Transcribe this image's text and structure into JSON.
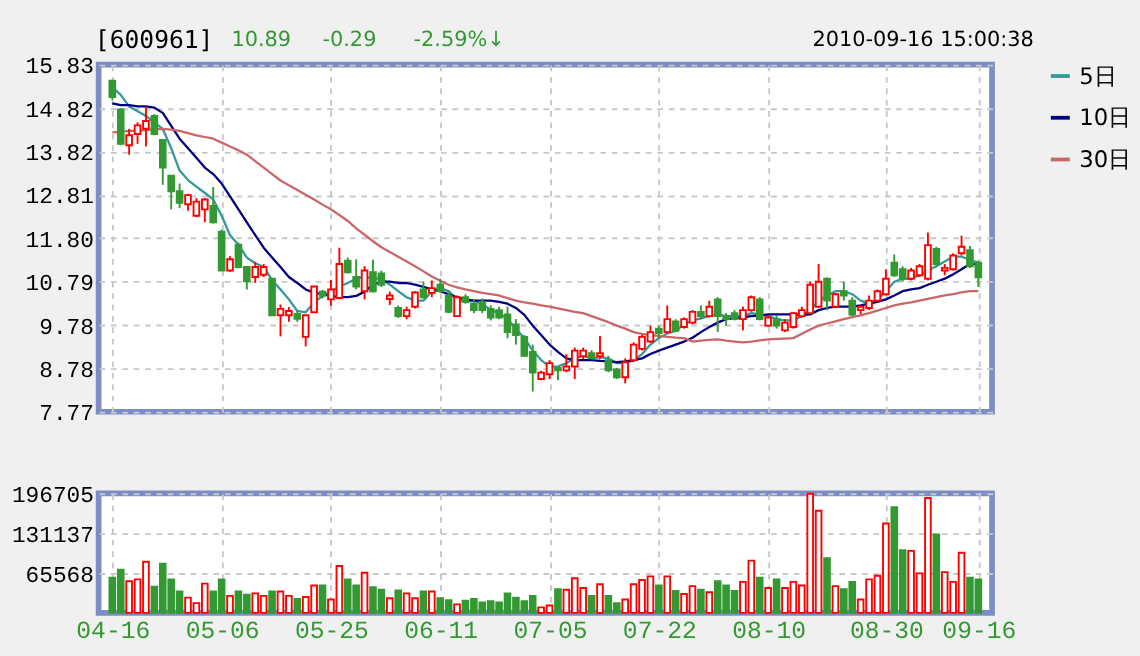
{
  "chart_data": [
    {
      "type": "candlestick",
      "title": "[600961]",
      "annotations": [
        "10.89",
        "-0.29",
        "-2.59%↓",
        "2010-09-16 15:00:38"
      ],
      "categories": [
        "04-16",
        null,
        null,
        null,
        null,
        null,
        null,
        null,
        null,
        null,
        null,
        null,
        null,
        "05-06",
        null,
        null,
        null,
        null,
        null,
        null,
        null,
        null,
        null,
        null,
        null,
        null,
        "05-25",
        null,
        null,
        null,
        null,
        null,
        null,
        null,
        null,
        null,
        null,
        null,
        null,
        "06-11",
        null,
        null,
        null,
        null,
        null,
        null,
        null,
        null,
        null,
        null,
        null,
        null,
        "07-05",
        null,
        null,
        null,
        null,
        null,
        null,
        null,
        null,
        null,
        null,
        null,
        null,
        "07-22",
        null,
        null,
        null,
        null,
        null,
        null,
        null,
        null,
        null,
        null,
        null,
        null,
        "08-10",
        null,
        null,
        null,
        null,
        null,
        null,
        null,
        null,
        null,
        null,
        null,
        null,
        null,
        "08-30",
        null,
        null,
        null,
        null,
        null,
        null,
        null,
        null,
        null,
        null,
        "09-16"
      ],
      "ohlc": [
        [
          15.46,
          15.46,
          15.01,
          15.08
        ],
        [
          14.79,
          14.82,
          13.96,
          13.99
        ],
        [
          13.96,
          14.34,
          13.74,
          14.19
        ],
        [
          14.22,
          14.49,
          13.99,
          14.42
        ],
        [
          14.34,
          14.86,
          13.93,
          14.52
        ],
        [
          14.64,
          14.68,
          14.19,
          14.22
        ],
        [
          14.08,
          14.08,
          13.04,
          13.44
        ],
        [
          13.25,
          13.25,
          12.47,
          12.89
        ],
        [
          12.89,
          13.07,
          12.5,
          12.62
        ],
        [
          12.59,
          12.83,
          12.44,
          12.8
        ],
        [
          12.32,
          12.73,
          12.29,
          12.65
        ],
        [
          12.47,
          12.73,
          12.17,
          12.7
        ],
        [
          12.55,
          12.99,
          12.14,
          12.17
        ],
        [
          11.95,
          12.0,
          11.05,
          11.05
        ],
        [
          11.05,
          11.38,
          11.02,
          11.31
        ],
        [
          11.65,
          11.7,
          11.1,
          11.13
        ],
        [
          11.13,
          11.13,
          10.61,
          10.8
        ],
        [
          10.9,
          11.25,
          10.76,
          11.13
        ],
        [
          10.95,
          11.2,
          10.9,
          11.13
        ],
        [
          10.86,
          10.86,
          10.01,
          10.01
        ],
        [
          10.01,
          10.26,
          9.52,
          10.16
        ],
        [
          10.01,
          10.2,
          9.86,
          10.11
        ],
        [
          10.04,
          10.11,
          9.86,
          9.93
        ],
        [
          9.51,
          10.01,
          9.29,
          10.01
        ],
        [
          10.08,
          10.68,
          10.08,
          10.68
        ],
        [
          10.56,
          10.6,
          10.4,
          10.46
        ],
        [
          10.38,
          10.83,
          10.23,
          10.61
        ],
        [
          10.41,
          11.58,
          10.38,
          11.2
        ],
        [
          11.28,
          11.35,
          10.98,
          11.01
        ],
        [
          10.9,
          11.31,
          10.61,
          10.68
        ],
        [
          10.57,
          11.15,
          10.38,
          11.05
        ],
        [
          11.01,
          11.3,
          10.54,
          10.57
        ],
        [
          10.98,
          11.05,
          10.67,
          10.72
        ],
        [
          10.39,
          10.56,
          10.25,
          10.47
        ],
        [
          10.18,
          10.24,
          9.95,
          9.99
        ],
        [
          9.99,
          10.21,
          9.92,
          10.13
        ],
        [
          10.21,
          10.57,
          10.17,
          10.54
        ],
        [
          10.61,
          10.79,
          10.4,
          10.43
        ],
        [
          10.53,
          10.82,
          10.43,
          10.64
        ],
        [
          10.72,
          10.86,
          10.54,
          10.57
        ],
        [
          10.47,
          10.57,
          10.06,
          10.09
        ],
        [
          9.99,
          10.47,
          9.97,
          10.43
        ],
        [
          10.43,
          10.5,
          10.28,
          10.32
        ],
        [
          10.28,
          10.38,
          10.06,
          10.13
        ],
        [
          10.32,
          10.4,
          10.06,
          10.13
        ],
        [
          10.16,
          10.24,
          9.89,
          9.96
        ],
        [
          10.13,
          10.21,
          9.92,
          9.96
        ],
        [
          10.03,
          10.21,
          9.48,
          9.62
        ],
        [
          9.8,
          9.92,
          9.33,
          9.55
        ],
        [
          9.51,
          9.55,
          9.04,
          9.07
        ],
        [
          9.16,
          9.33,
          8.24,
          8.68
        ],
        [
          8.53,
          8.72,
          8.5,
          8.68
        ],
        [
          8.64,
          8.97,
          8.53,
          8.9
        ],
        [
          8.79,
          8.82,
          8.5,
          8.73
        ],
        [
          8.73,
          9.11,
          8.69,
          8.82
        ],
        [
          8.82,
          9.26,
          8.53,
          9.19
        ],
        [
          9.06,
          9.26,
          8.99,
          9.19
        ],
        [
          9.13,
          9.2,
          8.99,
          9.01
        ],
        [
          9.06,
          9.53,
          8.99,
          9.13
        ],
        [
          8.97,
          9.07,
          8.69,
          8.73
        ],
        [
          8.75,
          8.79,
          8.53,
          8.57
        ],
        [
          8.57,
          9.01,
          8.43,
          8.92
        ],
        [
          8.97,
          9.38,
          8.92,
          9.33
        ],
        [
          9.23,
          9.55,
          9.19,
          9.51
        ],
        [
          9.4,
          9.77,
          9.37,
          9.62
        ],
        [
          9.7,
          9.77,
          9.48,
          9.6
        ],
        [
          9.62,
          10.24,
          9.59,
          9.92
        ],
        [
          9.87,
          9.92,
          9.62,
          9.65
        ],
        [
          9.74,
          9.96,
          9.7,
          9.92
        ],
        [
          9.84,
          10.13,
          9.8,
          10.09
        ],
        [
          10.09,
          10.24,
          9.92,
          9.99
        ],
        [
          9.99,
          10.35,
          9.96,
          10.21
        ],
        [
          10.38,
          10.43,
          9.62,
          9.99
        ],
        [
          9.99,
          10.06,
          9.77,
          9.92
        ],
        [
          10.06,
          10.13,
          9.89,
          9.92
        ],
        [
          9.92,
          10.21,
          9.66,
          10.13
        ],
        [
          10.13,
          10.47,
          10.09,
          10.43
        ],
        [
          10.38,
          10.43,
          9.89,
          9.92
        ],
        [
          9.77,
          10.01,
          9.74,
          9.96
        ],
        [
          9.92,
          10.01,
          9.7,
          9.77
        ],
        [
          9.66,
          9.92,
          9.62,
          9.84
        ],
        [
          9.74,
          10.09,
          9.7,
          10.06
        ],
        [
          9.99,
          10.21,
          9.95,
          10.13
        ],
        [
          10.06,
          10.79,
          10.03,
          10.72
        ],
        [
          10.21,
          11.2,
          10.18,
          10.79
        ],
        [
          10.86,
          10.89,
          10.13,
          10.35
        ],
        [
          10.21,
          10.53,
          10.18,
          10.5
        ],
        [
          10.57,
          10.79,
          10.35,
          10.47
        ],
        [
          10.35,
          10.43,
          9.99,
          10.03
        ],
        [
          10.13,
          10.24,
          10.03,
          10.21
        ],
        [
          10.18,
          10.47,
          10.13,
          10.35
        ],
        [
          10.35,
          10.61,
          10.32,
          10.57
        ],
        [
          10.5,
          11.08,
          10.47,
          10.86
        ],
        [
          11.23,
          11.42,
          10.9,
          10.94
        ],
        [
          11.08,
          11.15,
          10.79,
          10.86
        ],
        [
          10.86,
          11.11,
          10.82,
          11.05
        ],
        [
          10.94,
          11.2,
          10.9,
          11.15
        ],
        [
          10.86,
          11.93,
          10.82,
          11.64
        ],
        [
          11.55,
          11.6,
          11.15,
          11.2
        ],
        [
          11.05,
          11.2,
          10.94,
          11.11
        ],
        [
          11.08,
          11.45,
          11.05,
          11.4
        ],
        [
          11.45,
          11.86,
          11.4,
          11.6
        ],
        [
          11.52,
          11.62,
          11.11,
          11.15
        ],
        [
          11.23,
          11.28,
          10.67,
          10.89
        ]
      ],
      "colors": [
        "#339933",
        "#339933",
        "#ff0000",
        "#ff0000",
        "#ff0000",
        "#339933",
        "#339933",
        "#339933",
        "#339933",
        "#ff0000",
        "#ff0000",
        "#ff0000",
        "#339933",
        "#339933",
        "#ff0000",
        "#339933",
        "#339933",
        "#ff0000",
        "#ff0000",
        "#339933",
        "#ff0000",
        "#ff0000",
        "#339933",
        "#ff0000",
        "#ff0000",
        "#339933",
        "#ff0000",
        "#ff0000",
        "#339933",
        "#339933",
        "#ff0000",
        "#339933",
        "#339933",
        "#ff0000",
        "#339933",
        "#ff0000",
        "#ff0000",
        "#339933",
        "#ff0000",
        "#339933",
        "#339933",
        "#ff0000",
        "#339933",
        "#339933",
        "#339933",
        "#339933",
        "#339933",
        "#339933",
        "#339933",
        "#339933",
        "#339933",
        "#ff0000",
        "#ff0000",
        "#339933",
        "#ff0000",
        "#ff0000",
        "#ff0000",
        "#339933",
        "#ff0000",
        "#339933",
        "#339933",
        "#ff0000",
        "#ff0000",
        "#ff0000",
        "#ff0000",
        "#339933",
        "#ff0000",
        "#339933",
        "#ff0000",
        "#ff0000",
        "#339933",
        "#ff0000",
        "#339933",
        "#339933",
        "#339933",
        "#ff0000",
        "#ff0000",
        "#339933",
        "#ff0000",
        "#339933",
        "#ff0000",
        "#ff0000",
        "#ff0000",
        "#ff0000",
        "#ff0000",
        "#339933",
        "#ff0000",
        "#339933",
        "#339933",
        "#ff0000",
        "#ff0000",
        "#ff0000",
        "#ff0000",
        "#339933",
        "#339933",
        "#ff0000",
        "#ff0000",
        "#ff0000",
        "#339933",
        "#ff0000",
        "#ff0000",
        "#ff0000",
        "#339933",
        "#339933"
      ],
      "series": [
        {
          "name": "5日",
          "type": "line",
          "color": "#339999",
          "values": [
            15.31,
            15.13,
            14.86,
            14.75,
            14.64,
            14.49,
            14.34,
            13.89,
            13.37,
            13.15,
            13.0,
            12.85,
            12.7,
            12.32,
            11.87,
            11.65,
            11.35,
            11.22,
            11.13,
            10.83,
            10.61,
            10.38,
            10.11,
            10.08,
            10.31,
            10.46,
            10.56,
            10.68,
            10.76,
            10.86,
            10.9,
            10.86,
            10.86,
            10.72,
            10.57,
            10.43,
            10.35,
            10.35,
            10.57,
            10.64,
            10.57,
            10.38,
            10.32,
            10.35,
            10.28,
            10.13,
            10.06,
            9.92,
            9.7,
            9.48,
            9.19,
            8.97,
            8.82,
            8.82,
            8.9,
            9.01,
            9.07,
            9.01,
            9.04,
            9.01,
            8.9,
            8.9,
            8.97,
            9.11,
            9.33,
            9.48,
            9.59,
            9.65,
            9.8,
            9.89,
            9.94,
            9.99,
            10.03,
            9.99,
            9.99,
            9.99,
            10.06,
            10.03,
            9.99,
            9.92,
            9.89,
            9.89,
            9.99,
            10.13,
            10.35,
            10.47,
            10.57,
            10.57,
            10.5,
            10.35,
            10.28,
            10.38,
            10.57,
            10.79,
            10.86,
            10.86,
            10.94,
            11.05,
            11.15,
            11.26,
            11.37,
            11.37,
            11.3,
            11.23
          ]
        },
        {
          "name": "10日",
          "type": "line",
          "color": "#000080",
          "values": [
            14.93,
            14.89,
            14.89,
            14.86,
            14.86,
            14.83,
            14.71,
            14.41,
            14.11,
            13.89,
            13.67,
            13.44,
            13.29,
            13.07,
            12.77,
            12.47,
            12.17,
            11.87,
            11.58,
            11.35,
            11.13,
            10.9,
            10.76,
            10.61,
            10.53,
            10.5,
            10.46,
            10.43,
            10.43,
            10.46,
            10.56,
            10.72,
            10.79,
            10.79,
            10.76,
            10.76,
            10.72,
            10.67,
            10.61,
            10.57,
            10.5,
            10.43,
            10.38,
            10.35,
            10.35,
            10.35,
            10.32,
            10.28,
            10.18,
            10.02,
            9.77,
            9.55,
            9.33,
            9.16,
            9.01,
            8.97,
            8.97,
            8.97,
            8.95,
            8.94,
            8.92,
            8.94,
            8.97,
            9.01,
            9.11,
            9.19,
            9.26,
            9.33,
            9.4,
            9.49,
            9.62,
            9.74,
            9.84,
            9.92,
            9.94,
            9.96,
            9.99,
            10.01,
            10.03,
            10.03,
            10.03,
            10.03,
            10.02,
            10.03,
            10.13,
            10.18,
            10.21,
            10.21,
            10.21,
            10.24,
            10.28,
            10.32,
            10.38,
            10.47,
            10.57,
            10.61,
            10.64,
            10.72,
            10.79,
            10.86,
            10.96,
            11.08,
            11.2,
            11.2
          ]
        },
        {
          "name": "30日",
          "type": "line",
          "color": "#cc6666",
          "values": [
            14.26,
            14.27,
            14.29,
            14.3,
            14.31,
            14.33,
            14.34,
            14.32,
            14.29,
            14.24,
            14.19,
            14.15,
            14.11,
            14.02,
            13.93,
            13.84,
            13.74,
            13.59,
            13.44,
            13.29,
            13.14,
            13.03,
            12.92,
            12.81,
            12.7,
            12.58,
            12.47,
            12.34,
            12.2,
            12.03,
            11.88,
            11.73,
            11.59,
            11.48,
            11.37,
            11.26,
            11.15,
            11.03,
            10.91,
            10.81,
            10.72,
            10.66,
            10.61,
            10.57,
            10.53,
            10.5,
            10.47,
            10.41,
            10.35,
            10.31,
            10.28,
            10.24,
            10.21,
            10.17,
            10.13,
            10.09,
            10.06,
            9.99,
            9.92,
            9.85,
            9.77,
            9.7,
            9.62,
            9.58,
            9.55,
            9.53,
            9.51,
            9.49,
            9.48,
            9.4,
            9.42,
            9.44,
            9.45,
            9.42,
            9.4,
            9.38,
            9.4,
            9.43,
            9.45,
            9.46,
            9.47,
            9.48,
            9.58,
            9.68,
            9.77,
            9.82,
            9.87,
            9.92,
            9.97,
            10.01,
            10.06,
            10.12,
            10.18,
            10.24,
            10.28,
            10.31,
            10.35,
            10.39,
            10.43,
            10.47,
            10.5,
            10.54,
            10.57,
            10.57
          ]
        }
      ],
      "ylim": [
        7.77,
        15.83
      ],
      "yticks": [
        7.77,
        8.78,
        9.78,
        10.79,
        {
          "value": 11.8,
          "label": "11.80"
        },
        12.81,
        13.82,
        14.82,
        15.83
      ],
      "grid": true,
      "legend": "right",
      "tick_labels": "y",
      "line_style": "solid",
      "marker": "none"
    },
    {
      "type": "bar",
      "values": [
        58000,
        71000,
        52000,
        55000,
        84000,
        43000,
        81000,
        55000,
        35000,
        25000,
        16000,
        48000,
        35000,
        55000,
        28000,
        35000,
        30000,
        32000,
        28000,
        35000,
        35000,
        28000,
        23000,
        26000,
        45000,
        45000,
        22000,
        77000,
        55000,
        45000,
        66000,
        42000,
        38000,
        24000,
        37000,
        32000,
        24000,
        35000,
        35000,
        24000,
        21000,
        14000,
        20000,
        23000,
        17000,
        19000,
        17000,
        32000,
        25000,
        19000,
        28000,
        9000,
        12000,
        39000,
        38000,
        57000,
        41000,
        28000,
        47000,
        28000,
        16000,
        22000,
        47000,
        54000,
        60000,
        45000,
        60000,
        36000,
        31000,
        44000,
        38000,
        34000,
        52000,
        45000,
        36000,
        51000,
        86000,
        58000,
        41000,
        55000,
        41000,
        51000,
        45000,
        196000,
        168000,
        90000,
        44000,
        39000,
        51000,
        22000,
        55000,
        61000,
        147000,
        174000,
        103000,
        102000,
        65000,
        189000,
        129000,
        67000,
        51000,
        99000,
        58000,
        55000
      ],
      "colors": [
        "#339933",
        "#339933",
        "#ff0000",
        "#ff0000",
        "#ff0000",
        "#339933",
        "#339933",
        "#339933",
        "#339933",
        "#ff0000",
        "#ff0000",
        "#ff0000",
        "#339933",
        "#339933",
        "#ff0000",
        "#339933",
        "#339933",
        "#ff0000",
        "#ff0000",
        "#339933",
        "#ff0000",
        "#ff0000",
        "#339933",
        "#ff0000",
        "#ff0000",
        "#339933",
        "#ff0000",
        "#ff0000",
        "#339933",
        "#339933",
        "#ff0000",
        "#339933",
        "#339933",
        "#ff0000",
        "#339933",
        "#ff0000",
        "#ff0000",
        "#339933",
        "#ff0000",
        "#339933",
        "#339933",
        "#ff0000",
        "#339933",
        "#339933",
        "#339933",
        "#339933",
        "#339933",
        "#339933",
        "#339933",
        "#339933",
        "#339933",
        "#ff0000",
        "#ff0000",
        "#339933",
        "#ff0000",
        "#ff0000",
        "#ff0000",
        "#339933",
        "#ff0000",
        "#339933",
        "#339933",
        "#ff0000",
        "#ff0000",
        "#ff0000",
        "#ff0000",
        "#339933",
        "#ff0000",
        "#339933",
        "#ff0000",
        "#ff0000",
        "#339933",
        "#ff0000",
        "#339933",
        "#339933",
        "#339933",
        "#ff0000",
        "#ff0000",
        "#339933",
        "#ff0000",
        "#339933",
        "#ff0000",
        "#ff0000",
        "#ff0000",
        "#ff0000",
        "#ff0000",
        "#339933",
        "#ff0000",
        "#339933",
        "#339933",
        "#ff0000",
        "#ff0000",
        "#ff0000",
        "#ff0000",
        "#339933",
        "#339933",
        "#ff0000",
        "#ff0000",
        "#ff0000",
        "#339933",
        "#ff0000",
        "#ff0000",
        "#ff0000",
        "#339933",
        "#339933"
      ],
      "ylim": [
        0,
        196705
      ],
      "yticks": [
        65568,
        131137,
        196705
      ],
      "grid": true
    }
  ]
}
